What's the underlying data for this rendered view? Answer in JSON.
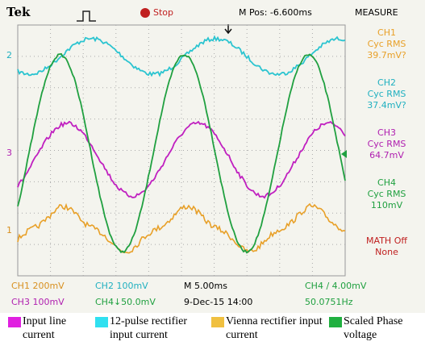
{
  "header": {
    "brand": "Tek",
    "state": "Stop",
    "position": "M Pos: -6.600ms",
    "menu": "MEASURE"
  },
  "markers": {
    "ch2": "2",
    "ch3": "3",
    "ch1": "1"
  },
  "measurements": [
    {
      "channel": "CH1",
      "kind": "Cyc RMS",
      "value": "39.7mV?"
    },
    {
      "channel": "CH2",
      "kind": "Cyc RMS",
      "value": "37.4mV?"
    },
    {
      "channel": "CH3",
      "kind": "Cyc RMS",
      "value": "64.7mV"
    },
    {
      "channel": "CH4",
      "kind": "Cyc RMS",
      "value": "110mV"
    }
  ],
  "math": {
    "label": "MATH Off",
    "value": "None"
  },
  "status": {
    "ch1": "CH1  200mV",
    "ch2": "CH2  100mV",
    "timebase": "M 5.00ms",
    "trigger": "CH4 ∕ 4.00mV",
    "ch3": "CH3  100mV",
    "ch4": "CH4↓50.0mV",
    "date": "9-Dec-15  14:00",
    "frequency": "50.0751Hz"
  },
  "legend": [
    "Input line current",
    "12-pulse rectifier input current",
    "Vienna rectifier input current",
    "Scaled Phase voltage"
  ]
}
